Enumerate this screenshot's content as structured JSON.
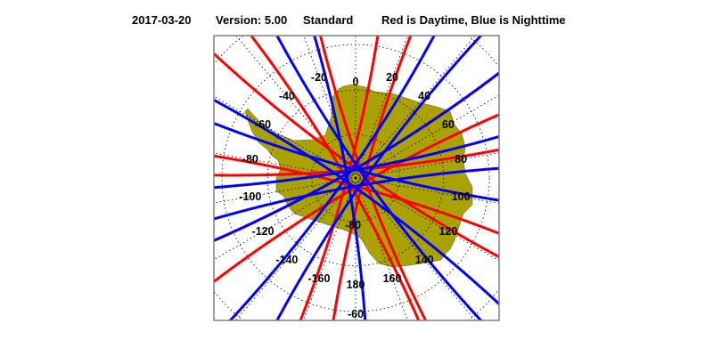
{
  "header": {
    "date": "2017-03-20",
    "version": "Version: 5.00",
    "mode": "Standard",
    "legend_text": "Red is Daytime, Blue is Nighttime"
  },
  "map": {
    "projection": "south polar stereographic",
    "region": "Antarctica",
    "colors": {
      "land": "#a9a200",
      "daytime": "#ff0000",
      "nighttime": "#0000ff",
      "grid": "#000000",
      "frame": "#808080"
    },
    "longitude_labels": [
      "0",
      "20",
      "40",
      "60",
      "80",
      "100",
      "120",
      "140",
      "160",
      "180",
      "-160",
      "-140",
      "-120",
      "-100",
      "-80",
      "-60",
      "-40",
      "-20"
    ],
    "latitude_labels": [
      "-80",
      "-60"
    ]
  }
}
